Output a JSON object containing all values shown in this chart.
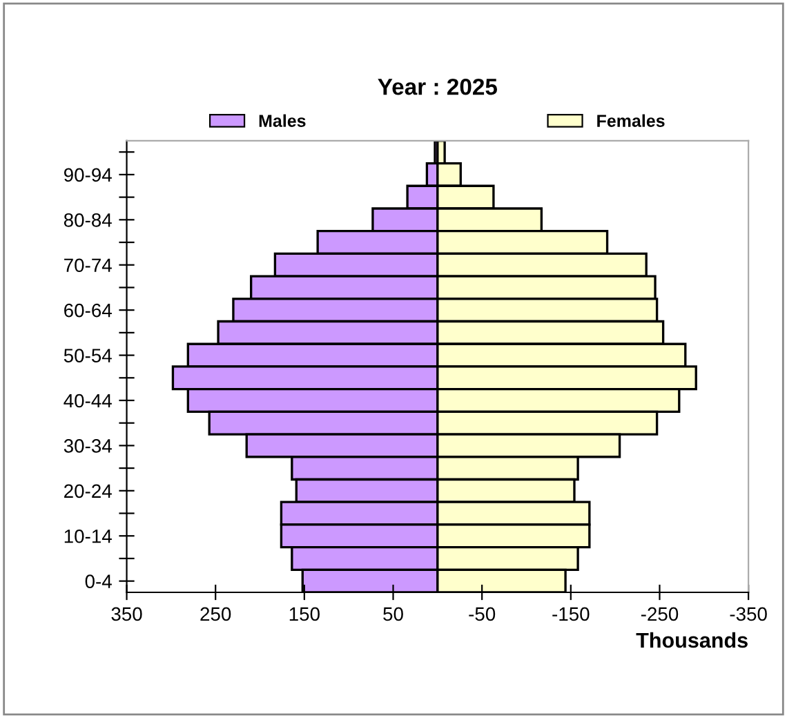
{
  "chart_data": {
    "type": "bar",
    "orientation": "horizontal",
    "stacked": true,
    "title": "Year : 2025",
    "xlabel": "Thousands",
    "categories": [
      null,
      "90-94",
      null,
      "80-84",
      null,
      "70-74",
      null,
      "60-64",
      null,
      "50-54",
      null,
      "40-44",
      null,
      "30-34",
      null,
      "20-24",
      null,
      "10-14",
      null,
      "0-4"
    ],
    "series": [
      {
        "name": "Males",
        "color": "#cc99ff",
        "values": [
          3,
          12,
          34,
          73,
          135,
          183,
          210,
          230,
          247,
          281,
          298,
          281,
          257,
          215,
          164,
          159,
          176,
          176,
          164,
          152
        ]
      },
      {
        "name": "Females",
        "color": "#ffffcc",
        "values": [
          -8,
          -26,
          -63,
          -117,
          -191,
          -235,
          -245,
          -247,
          -254,
          -279,
          -291,
          -272,
          -247,
          -205,
          -158,
          -154,
          -171,
          -171,
          -158,
          -144
        ]
      }
    ],
    "xlim": [
      350,
      -350
    ],
    "xticks": [
      350,
      250,
      150,
      50,
      -50,
      -150,
      -250,
      -350
    ],
    "grid": false,
    "legend": "top"
  }
}
